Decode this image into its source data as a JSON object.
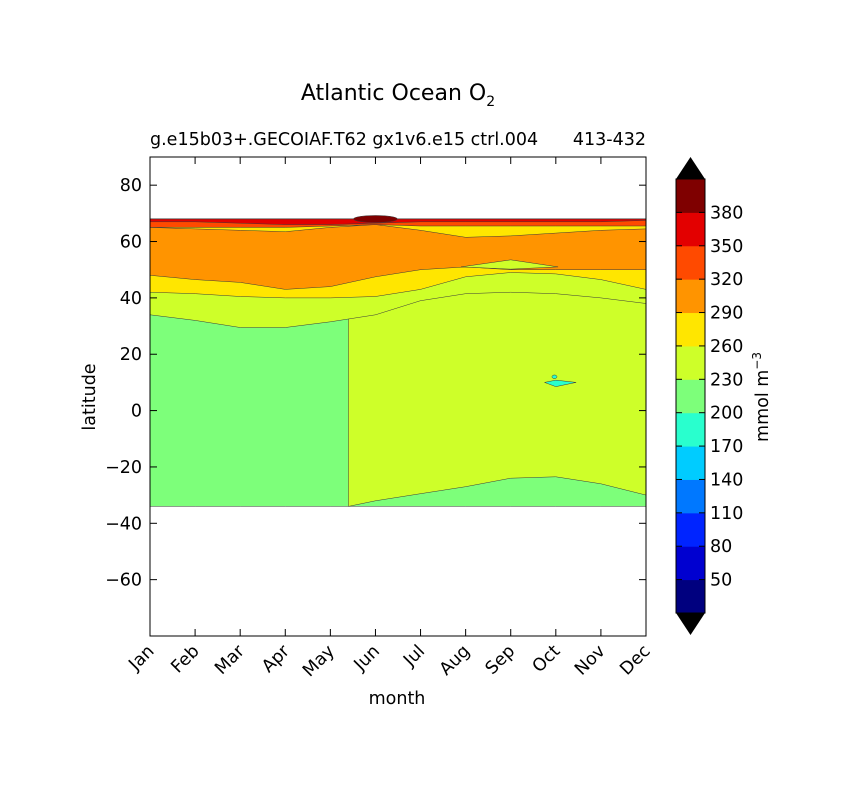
{
  "chart_data": {
    "type": "contour",
    "title_main": "Atlantic Ocean O",
    "title_subscript": "2",
    "subtitle_left": "g.e15b03+.GECOIAF.T62 gx1v6.e15 ctrl.004",
    "subtitle_right": "413-432",
    "xlabel": "month",
    "ylabel": "latitude",
    "x_ticks": [
      "Jan",
      "Feb",
      "Mar",
      "Apr",
      "May",
      "Jun",
      "Jul",
      "Aug",
      "Sep",
      "Oct",
      "Nov",
      "Dec"
    ],
    "y_ticks": [
      80,
      60,
      40,
      20,
      0,
      -20,
      -40,
      -60
    ],
    "x_range": [
      1,
      12
    ],
    "y_range": [
      -80,
      90
    ],
    "colorbar": {
      "label_main": "mmol m",
      "label_exp": "−3",
      "ticks": [
        50,
        80,
        110,
        140,
        170,
        200,
        230,
        260,
        290,
        320,
        350,
        380
      ],
      "levels": [
        20,
        50,
        80,
        110,
        140,
        170,
        200,
        230,
        260,
        290,
        320,
        350,
        380,
        410
      ],
      "colors": [
        "#00007f",
        "#0000d0",
        "#0024ff",
        "#0078ff",
        "#00ccff",
        "#29ffce",
        "#7dff7a",
        "#ceff29",
        "#ffe600",
        "#ff9400",
        "#ff4a00",
        "#e30000",
        "#7f0000"
      ],
      "under_color": "#000000",
      "over_color": "#000000"
    },
    "data_lat_min": -34,
    "data_lat_max": 68,
    "bands": [
      {
        "range": "200-230",
        "color": "#7dff7a",
        "lower": [
          -34,
          -34,
          -34,
          -34,
          -34,
          -34,
          -34,
          -34,
          -34,
          -34,
          -34,
          -34
        ],
        "upper": [
          68,
          68,
          68,
          68,
          68,
          68,
          68,
          68,
          68,
          68,
          68,
          68
        ]
      },
      {
        "range": "230-260",
        "color": "#ceff29",
        "lower_path": [
          [
            5.4,
            -34
          ],
          [
            6,
            -32
          ],
          [
            7,
            -29.5
          ],
          [
            8,
            -27
          ],
          [
            9,
            -24
          ],
          [
            10,
            -23.5
          ],
          [
            11,
            -26
          ],
          [
            12,
            -30
          ]
        ],
        "upper": [
          68,
          68,
          68,
          68,
          68,
          68,
          68,
          68,
          68,
          68,
          68,
          68
        ]
      },
      {
        "range": "230-260",
        "color": "#ceff29",
        "lower": [
          34,
          32,
          29.5,
          29.5,
          31.5,
          34,
          39,
          41.5,
          42,
          41.5,
          40,
          38
        ],
        "upper": [
          68,
          68,
          68,
          68,
          68,
          68,
          68,
          68,
          68,
          68,
          68,
          68
        ]
      },
      {
        "range": "260-290",
        "color": "#ffe600",
        "lower": [
          42,
          41.5,
          40.5,
          40,
          40,
          40.5,
          43,
          47.5,
          49,
          48.5,
          46.5,
          43
        ],
        "upper": [
          68,
          68,
          68,
          68,
          68,
          68,
          68,
          68,
          68,
          68,
          68,
          68
        ]
      },
      {
        "range": "290-320",
        "color": "#ff9400",
        "lower": [
          48,
          46.5,
          45.5,
          43,
          44,
          47.5,
          50,
          51,
          50,
          50,
          50,
          50
        ],
        "upper": [
          65,
          64.5,
          64,
          63.5,
          65,
          66,
          64,
          61.5,
          62,
          63,
          64,
          64.5
        ]
      },
      {
        "range": "320-350",
        "color": "#ff4a00",
        "lower": [
          65,
          65,
          65,
          65,
          65.5,
          66,
          65.5,
          65.5,
          65.5,
          65.5,
          65.5,
          65.5
        ],
        "upper": [
          68,
          68,
          68,
          68,
          68,
          68,
          68,
          68,
          68,
          68,
          68,
          68
        ]
      },
      {
        "range": "350-380",
        "color": "#e30000",
        "lower": [
          67,
          67,
          66.5,
          66,
          66,
          66.5,
          67,
          67,
          67,
          67,
          67,
          67.5
        ],
        "upper": [
          68,
          68,
          68,
          68,
          68,
          68,
          68,
          68,
          68,
          68,
          68,
          68
        ]
      }
    ]
  }
}
